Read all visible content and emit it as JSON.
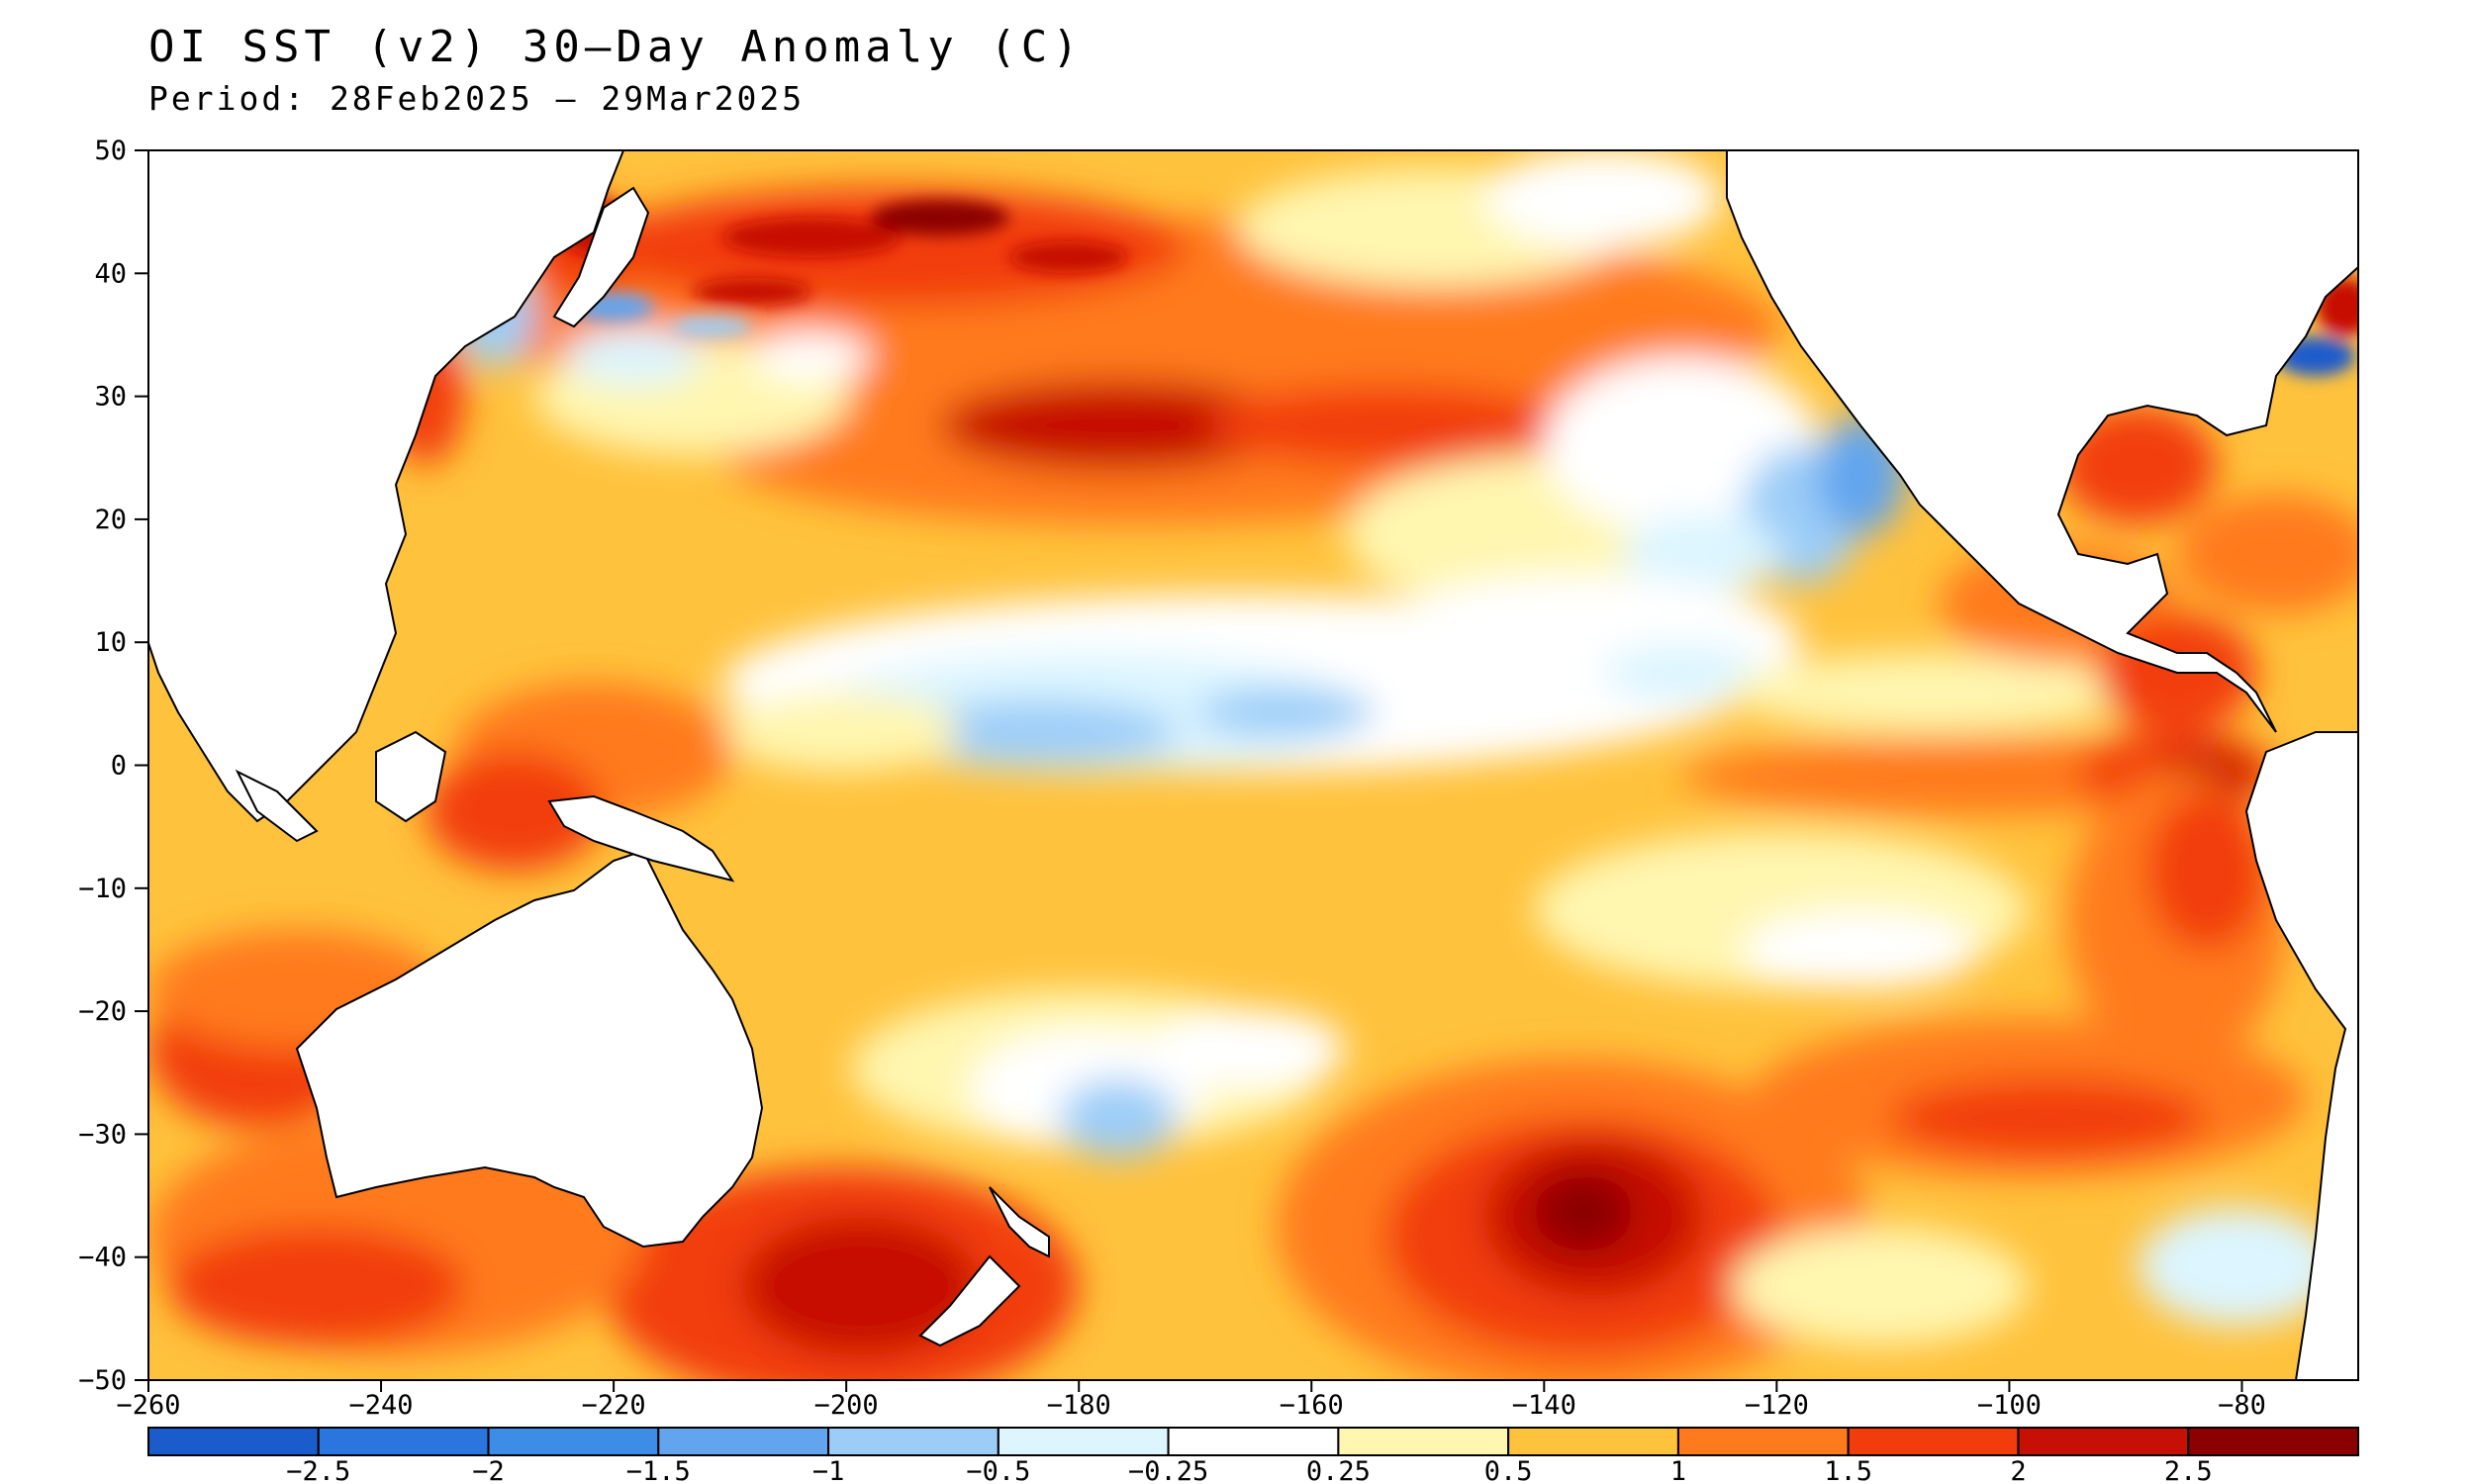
{
  "title": "OI SST (v2) 30–Day Anomaly (C)",
  "period": "Period: 28Feb2025 – 29Mar2025",
  "map": {
    "lon_range": [
      -260,
      -70
    ],
    "lat_range": [
      -50,
      50
    ],
    "lat_ticks": [
      "50",
      "40",
      "30",
      "20",
      "10",
      "0",
      "−10",
      "−20",
      "−30",
      "−40",
      "−50"
    ],
    "lat_values": [
      50,
      40,
      30,
      20,
      10,
      0,
      -10,
      -20,
      -30,
      -40,
      -50
    ],
    "lon_ticks": [
      "−260",
      "−240",
      "−220",
      "−200",
      "−180",
      "−160",
      "−140",
      "−120",
      "−100",
      "−80"
    ],
    "lon_values": [
      -260,
      -240,
      -220,
      -200,
      -180,
      -160,
      -140,
      -120,
      -100,
      -80
    ],
    "land_color": "#ffffff",
    "anomaly_regions": [
      {
        "region": "North Pacific 30N–45N",
        "level": "1.5 to 2.5"
      },
      {
        "region": "Equatorial central Pacific",
        "level": "-0.5 to 0.25"
      },
      {
        "region": "Eastern equatorial Pacific near coast",
        "level": "2 to 2.5"
      },
      {
        "region": "South Pacific 30S–45S near -140",
        "level": "2 to 3"
      },
      {
        "region": "Tasman Sea",
        "level": "2 to 3"
      },
      {
        "region": "Baja California coast",
        "level": "-1.5 to -0.5"
      }
    ]
  },
  "colorbar": {
    "labels": [
      "−2.5",
      "−2",
      "−1.5",
      "−1",
      "−0.5",
      "−0.25",
      "0.25",
      "0.5",
      "1",
      "1.5",
      "2",
      "2.5"
    ],
    "colors": [
      "#1a5ccc",
      "#2a75de",
      "#3d8ce6",
      "#62a5ee",
      "#9ccdf8",
      "#dcf5ff",
      "#ffffff",
      "#fff6b0",
      "#ffc23c",
      "#ff7a1c",
      "#f23c0c",
      "#c61005",
      "#8b0000"
    ]
  }
}
